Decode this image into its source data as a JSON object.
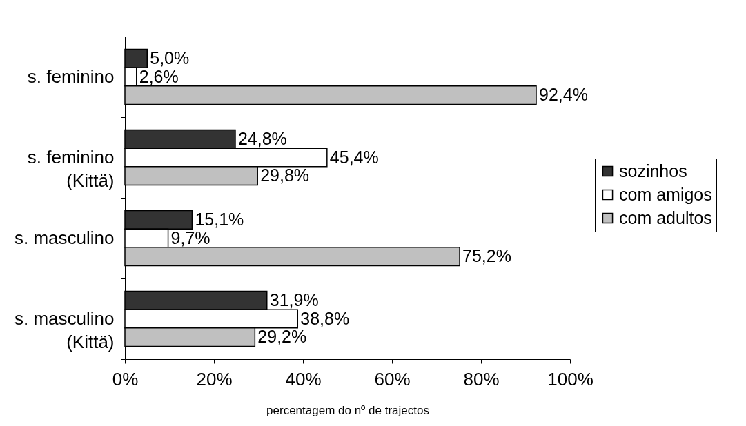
{
  "chart_data": {
    "type": "bar",
    "orientation": "horizontal",
    "xlabel": "percentagem do nº de trajectos",
    "categories": [
      "s. feminino",
      "s. feminino\n(Kittä)",
      "s. masculino",
      "s. masculino\n(Kittä)"
    ],
    "series": [
      {
        "name": "sozinhos",
        "color": "#333333",
        "values": [
          5.0,
          24.8,
          15.1,
          31.9
        ],
        "value_labels": [
          "5,0%",
          "24,8%",
          "15,1%",
          "31,9%"
        ]
      },
      {
        "name": "com amigos",
        "color": "#ffffff",
        "values": [
          2.6,
          45.4,
          9.7,
          38.8
        ],
        "value_labels": [
          "2,6%",
          "45,4%",
          "9,7%",
          "38,8%"
        ]
      },
      {
        "name": "com adultos",
        "color": "#c0c0c0",
        "values": [
          92.4,
          29.8,
          75.2,
          29.2
        ],
        "value_labels": [
          "92,4%",
          "29,8%",
          "75,2%",
          "29,2%"
        ]
      }
    ],
    "xlim": [
      0,
      100
    ],
    "xticks": [
      {
        "value": 0,
        "label": "0%"
      },
      {
        "value": 20,
        "label": "20%"
      },
      {
        "value": 40,
        "label": "40%"
      },
      {
        "value": 60,
        "label": "60%"
      },
      {
        "value": 80,
        "label": "80%"
      },
      {
        "value": 100,
        "label": "100%"
      }
    ],
    "grid": false,
    "legend": "right"
  }
}
